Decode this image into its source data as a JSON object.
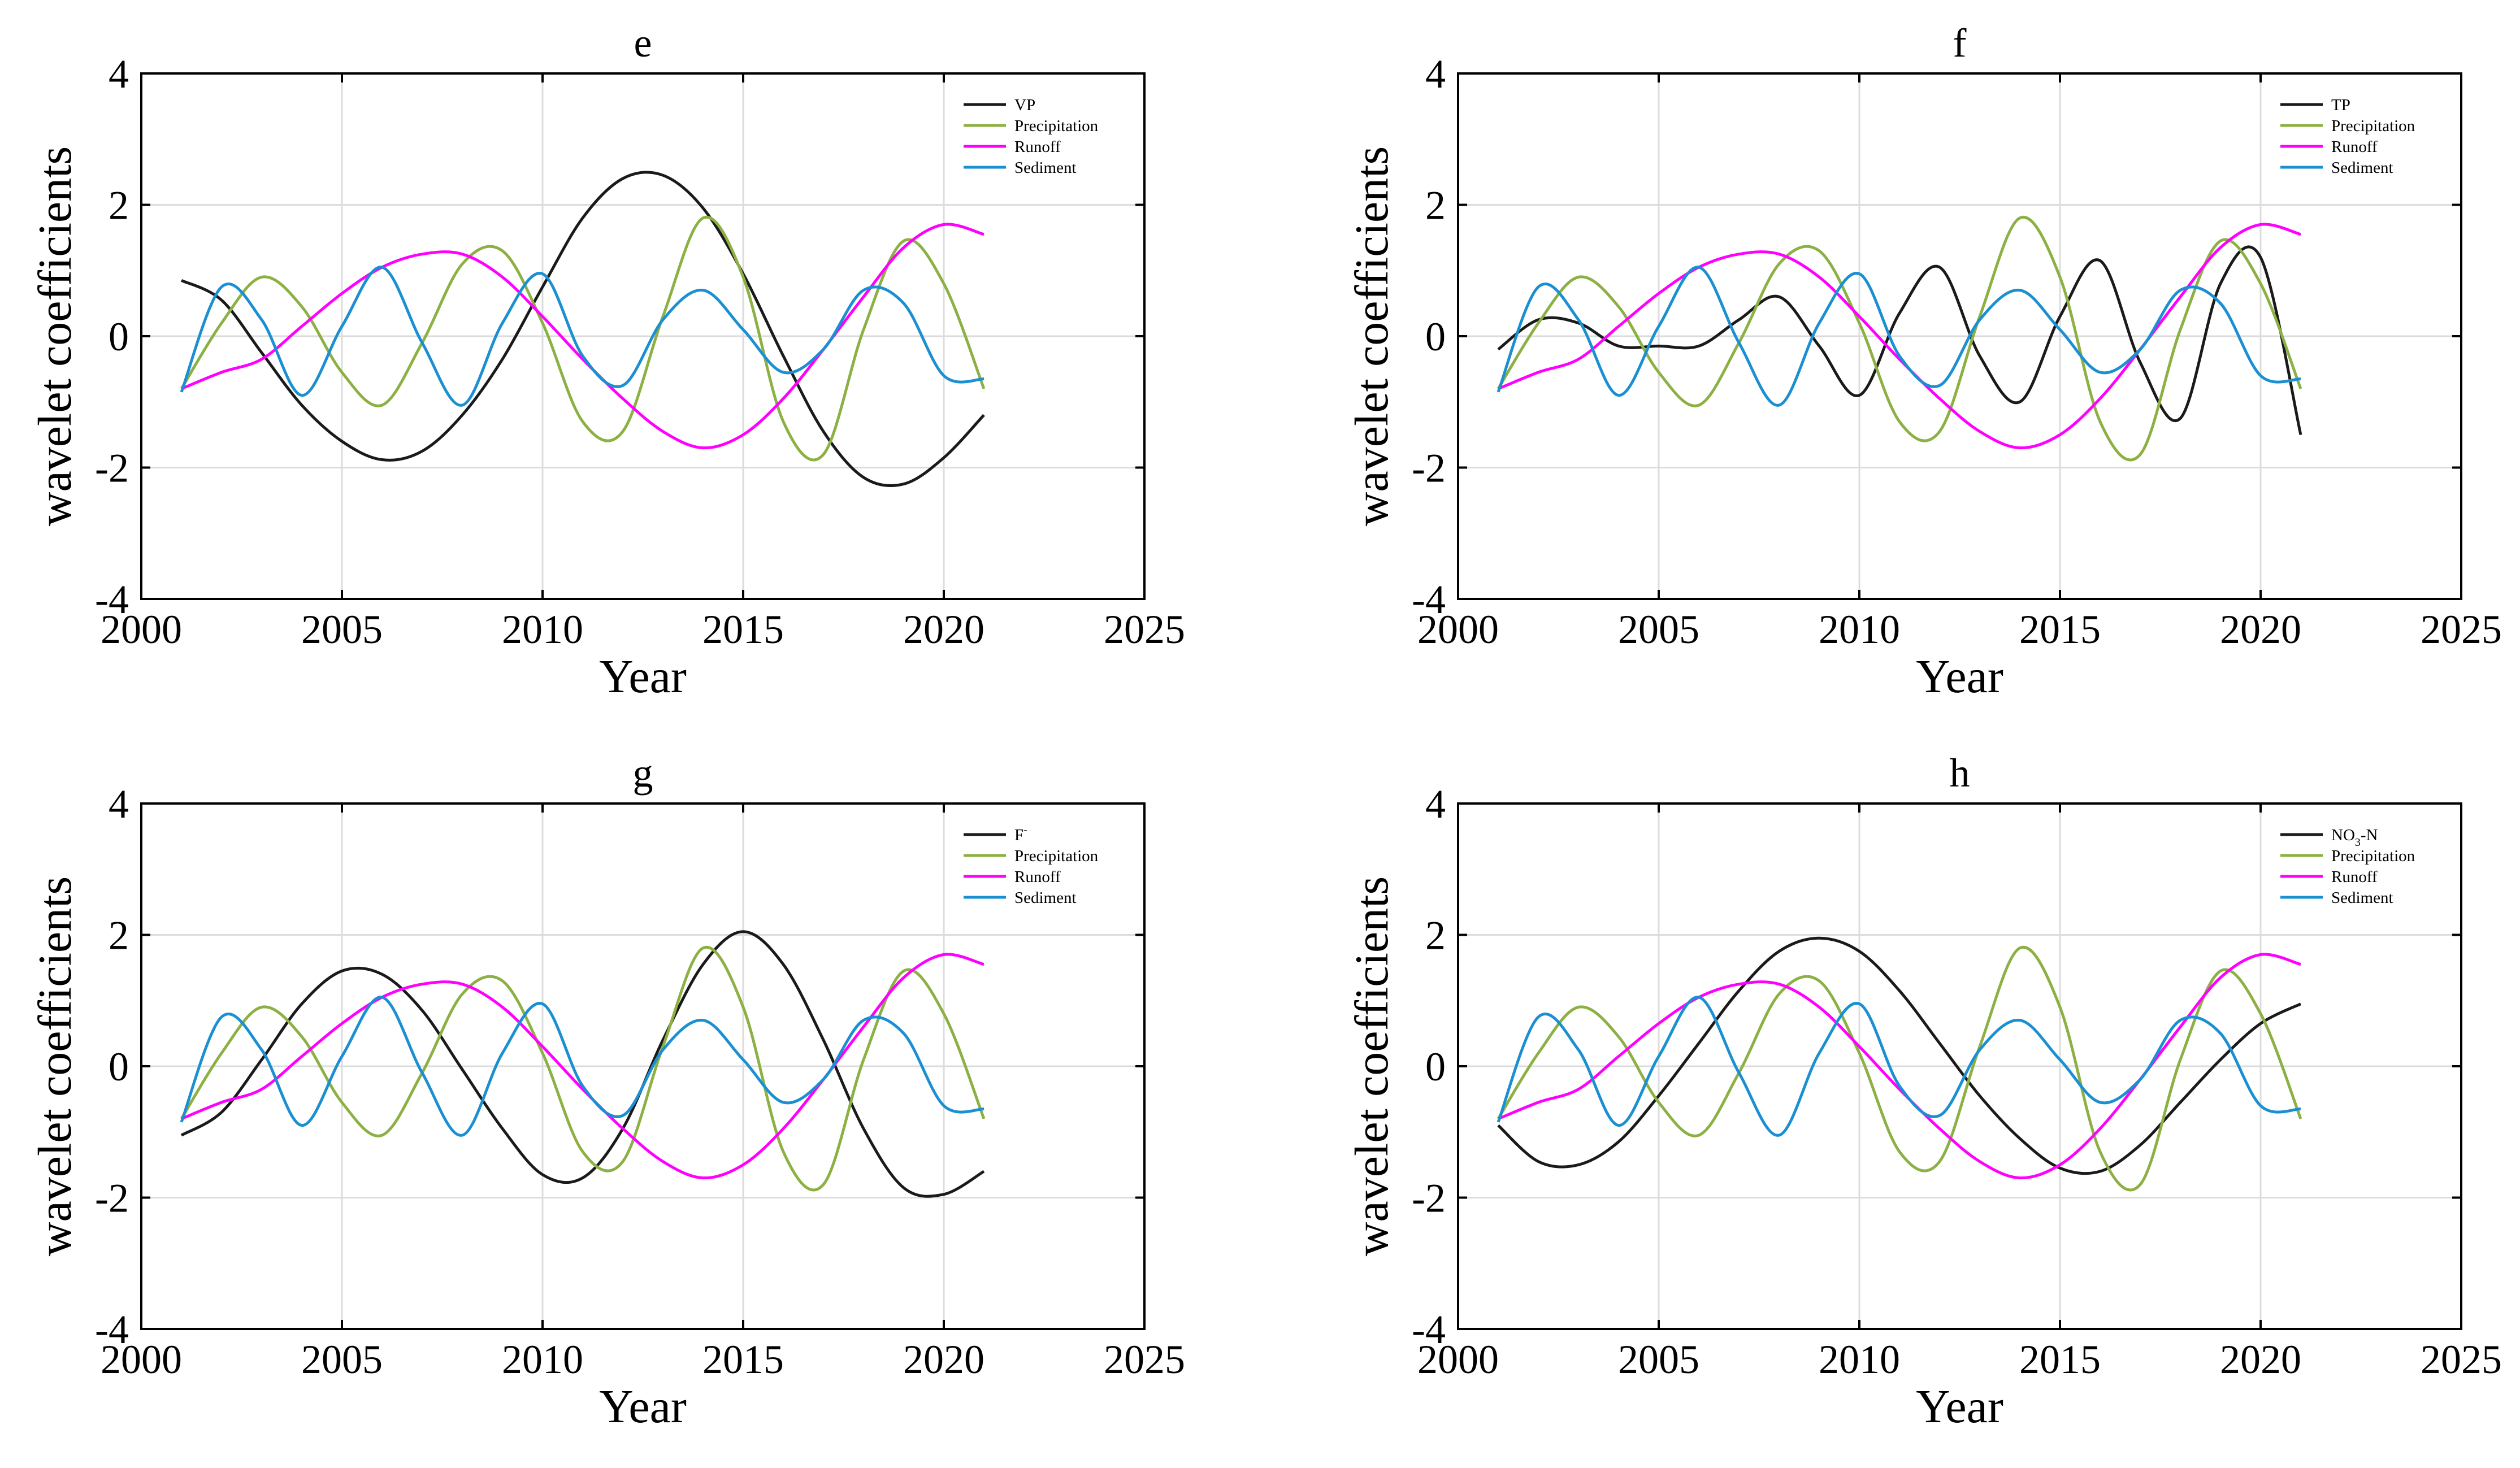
{
  "colors": {
    "frame": "#000000",
    "grid": "#dcdcdc",
    "precipitation": "#8cb043",
    "runoff": "#ff00ff",
    "sediment": "#1a8fd1",
    "indicator": "#1a1a1a"
  },
  "chart_data": [
    {
      "type": "line",
      "title": "e",
      "xlabel": "Year",
      "ylabel": "wavelet coefficients",
      "xlim": [
        2000,
        2025
      ],
      "ylim": [
        -4,
        4
      ],
      "xticks": [
        2000,
        2005,
        2010,
        2015,
        2020,
        2025
      ],
      "yticks": [
        -4,
        -2,
        0,
        2,
        4
      ],
      "grid": true,
      "legend_position": "top-right",
      "x": [
        2001,
        2002,
        2003,
        2004,
        2005,
        2006,
        2007,
        2008,
        2009,
        2010,
        2011,
        2012,
        2013,
        2014,
        2015,
        2016,
        2017,
        2018,
        2019,
        2020,
        2021
      ],
      "series": [
        {
          "name": "VP",
          "key": "indicator",
          "values": [
            0.85,
            0.55,
            -0.25,
            -1.05,
            -1.6,
            -1.88,
            -1.75,
            -1.2,
            -0.35,
            0.75,
            1.8,
            2.4,
            2.45,
            1.95,
            0.95,
            -0.3,
            -1.45,
            -2.15,
            -2.25,
            -1.85,
            -1.2
          ]
        },
        {
          "name": "Precipitation",
          "key": "precipitation",
          "values": [
            -0.8,
            0.2,
            0.9,
            0.45,
            -0.55,
            -1.05,
            -0.1,
            1.1,
            1.3,
            0.2,
            -1.3,
            -1.45,
            0.3,
            1.8,
            0.9,
            -1.3,
            -1.8,
            0.1,
            1.45,
            0.8,
            -0.8
          ]
        },
        {
          "name": "Runoff",
          "key": "runoff",
          "values": [
            -0.8,
            -0.55,
            -0.35,
            0.15,
            0.65,
            1.05,
            1.25,
            1.25,
            0.9,
            0.3,
            -0.35,
            -0.95,
            -1.45,
            -1.7,
            -1.5,
            -0.95,
            -0.2,
            0.6,
            1.35,
            1.7,
            1.55
          ]
        },
        {
          "name": "Sediment",
          "key": "sediment",
          "values": [
            -0.85,
            0.75,
            0.25,
            -0.9,
            0.15,
            1.05,
            -0.1,
            -1.05,
            0.2,
            0.95,
            -0.3,
            -0.75,
            0.25,
            0.7,
            0.1,
            -0.55,
            -0.2,
            0.7,
            0.5,
            -0.6,
            -0.65
          ]
        }
      ]
    },
    {
      "type": "line",
      "title": "f",
      "xlabel": "Year",
      "ylabel": "wavelet coefficients",
      "xlim": [
        2000,
        2025
      ],
      "ylim": [
        -4,
        4
      ],
      "xticks": [
        2000,
        2005,
        2010,
        2015,
        2020,
        2025
      ],
      "yticks": [
        -4,
        -2,
        0,
        2,
        4
      ],
      "grid": true,
      "legend_position": "top-right",
      "x": [
        2001,
        2002,
        2003,
        2004,
        2005,
        2006,
        2007,
        2008,
        2009,
        2010,
        2011,
        2012,
        2013,
        2014,
        2015,
        2016,
        2017,
        2018,
        2019,
        2020,
        2021
      ],
      "series": [
        {
          "name": "TP",
          "key": "indicator",
          "values": [
            -0.2,
            0.25,
            0.2,
            -0.15,
            -0.15,
            -0.15,
            0.25,
            0.6,
            -0.15,
            -0.9,
            0.35,
            1.05,
            -0.3,
            -1.0,
            0.3,
            1.15,
            -0.4,
            -1.25,
            0.8,
            1.2,
            -1.5
          ]
        },
        {
          "name": "Precipitation",
          "key": "precipitation",
          "values": [
            -0.8,
            0.2,
            0.9,
            0.45,
            -0.55,
            -1.05,
            -0.1,
            1.1,
            1.3,
            0.2,
            -1.3,
            -1.45,
            0.3,
            1.8,
            0.9,
            -1.3,
            -1.8,
            0.1,
            1.45,
            0.8,
            -0.8
          ]
        },
        {
          "name": "Runoff",
          "key": "runoff",
          "values": [
            -0.8,
            -0.55,
            -0.35,
            0.15,
            0.65,
            1.05,
            1.25,
            1.25,
            0.9,
            0.3,
            -0.35,
            -0.95,
            -1.45,
            -1.7,
            -1.5,
            -0.95,
            -0.2,
            0.6,
            1.35,
            1.7,
            1.55
          ]
        },
        {
          "name": "Sediment",
          "key": "sediment",
          "values": [
            -0.85,
            0.75,
            0.25,
            -0.9,
            0.15,
            1.05,
            -0.1,
            -1.05,
            0.2,
            0.95,
            -0.3,
            -0.75,
            0.25,
            0.7,
            0.1,
            -0.55,
            -0.2,
            0.7,
            0.5,
            -0.6,
            -0.65
          ]
        }
      ]
    },
    {
      "type": "line",
      "title": "g",
      "xlabel": "Year",
      "ylabel": "wavelet coefficients",
      "xlim": [
        2000,
        2025
      ],
      "ylim": [
        -4,
        4
      ],
      "xticks": [
        2000,
        2005,
        2010,
        2015,
        2020,
        2025
      ],
      "yticks": [
        -4,
        -2,
        0,
        2,
        4
      ],
      "grid": true,
      "legend_position": "top-right",
      "x": [
        2001,
        2002,
        2003,
        2004,
        2005,
        2006,
        2007,
        2008,
        2009,
        2010,
        2011,
        2012,
        2013,
        2014,
        2015,
        2016,
        2017,
        2018,
        2019,
        2020,
        2021
      ],
      "series": [
        {
          "name": "F",
          "legend_sup": "-",
          "key": "indicator",
          "values": [
            -1.05,
            -0.7,
            0.1,
            0.95,
            1.45,
            1.4,
            0.85,
            -0.05,
            -0.95,
            -1.65,
            -1.7,
            -0.95,
            0.4,
            1.55,
            2.05,
            1.55,
            0.4,
            -0.95,
            -1.85,
            -1.95,
            -1.6
          ]
        },
        {
          "name": "Precipitation",
          "key": "precipitation",
          "values": [
            -0.8,
            0.2,
            0.9,
            0.45,
            -0.55,
            -1.05,
            -0.1,
            1.1,
            1.3,
            0.2,
            -1.3,
            -1.45,
            0.3,
            1.8,
            0.9,
            -1.3,
            -1.8,
            0.1,
            1.45,
            0.8,
            -0.8
          ]
        },
        {
          "name": "Runoff",
          "key": "runoff",
          "values": [
            -0.8,
            -0.55,
            -0.35,
            0.15,
            0.65,
            1.05,
            1.25,
            1.25,
            0.9,
            0.3,
            -0.35,
            -0.95,
            -1.45,
            -1.7,
            -1.5,
            -0.95,
            -0.2,
            0.6,
            1.35,
            1.7,
            1.55
          ]
        },
        {
          "name": "Sediment",
          "key": "sediment",
          "values": [
            -0.85,
            0.75,
            0.25,
            -0.9,
            0.15,
            1.05,
            -0.1,
            -1.05,
            0.2,
            0.95,
            -0.3,
            -0.75,
            0.25,
            0.7,
            0.1,
            -0.55,
            -0.2,
            0.7,
            0.5,
            -0.6,
            -0.65
          ]
        }
      ]
    },
    {
      "type": "line",
      "title": "h",
      "xlabel": "Year",
      "ylabel": "wavelet coefficients",
      "xlim": [
        2000,
        2025
      ],
      "ylim": [
        -4,
        4
      ],
      "xticks": [
        2000,
        2005,
        2010,
        2015,
        2020,
        2025
      ],
      "yticks": [
        -4,
        -2,
        0,
        2,
        4
      ],
      "grid": true,
      "legend_position": "top-right",
      "x": [
        2001,
        2002,
        2003,
        2004,
        2005,
        2006,
        2007,
        2008,
        2009,
        2010,
        2011,
        2012,
        2013,
        2014,
        2015,
        2016,
        2017,
        2018,
        2019,
        2020,
        2021
      ],
      "series": [
        {
          "name": "NO",
          "legend_sub": "3",
          "legend_tail": "-N",
          "key": "indicator",
          "values": [
            -0.9,
            -1.45,
            -1.5,
            -1.15,
            -0.45,
            0.35,
            1.15,
            1.75,
            1.95,
            1.75,
            1.15,
            0.35,
            -0.45,
            -1.1,
            -1.55,
            -1.6,
            -1.2,
            -0.55,
            0.1,
            0.65,
            0.95
          ]
        },
        {
          "name": "Precipitation",
          "key": "precipitation",
          "values": [
            -0.8,
            0.2,
            0.9,
            0.45,
            -0.55,
            -1.05,
            -0.1,
            1.1,
            1.3,
            0.2,
            -1.3,
            -1.45,
            0.3,
            1.8,
            0.9,
            -1.3,
            -1.8,
            0.1,
            1.45,
            0.8,
            -0.8
          ]
        },
        {
          "name": "Runoff",
          "key": "runoff",
          "values": [
            -0.8,
            -0.55,
            -0.35,
            0.15,
            0.65,
            1.05,
            1.25,
            1.25,
            0.9,
            0.3,
            -0.35,
            -0.95,
            -1.45,
            -1.7,
            -1.5,
            -0.95,
            -0.2,
            0.6,
            1.35,
            1.7,
            1.55
          ]
        },
        {
          "name": "Sediment",
          "key": "sediment",
          "values": [
            -0.85,
            0.75,
            0.25,
            -0.9,
            0.15,
            1.05,
            -0.1,
            -1.05,
            0.2,
            0.95,
            -0.3,
            -0.75,
            0.25,
            0.7,
            0.1,
            -0.55,
            -0.2,
            0.7,
            0.5,
            -0.6,
            -0.65
          ]
        }
      ]
    }
  ]
}
